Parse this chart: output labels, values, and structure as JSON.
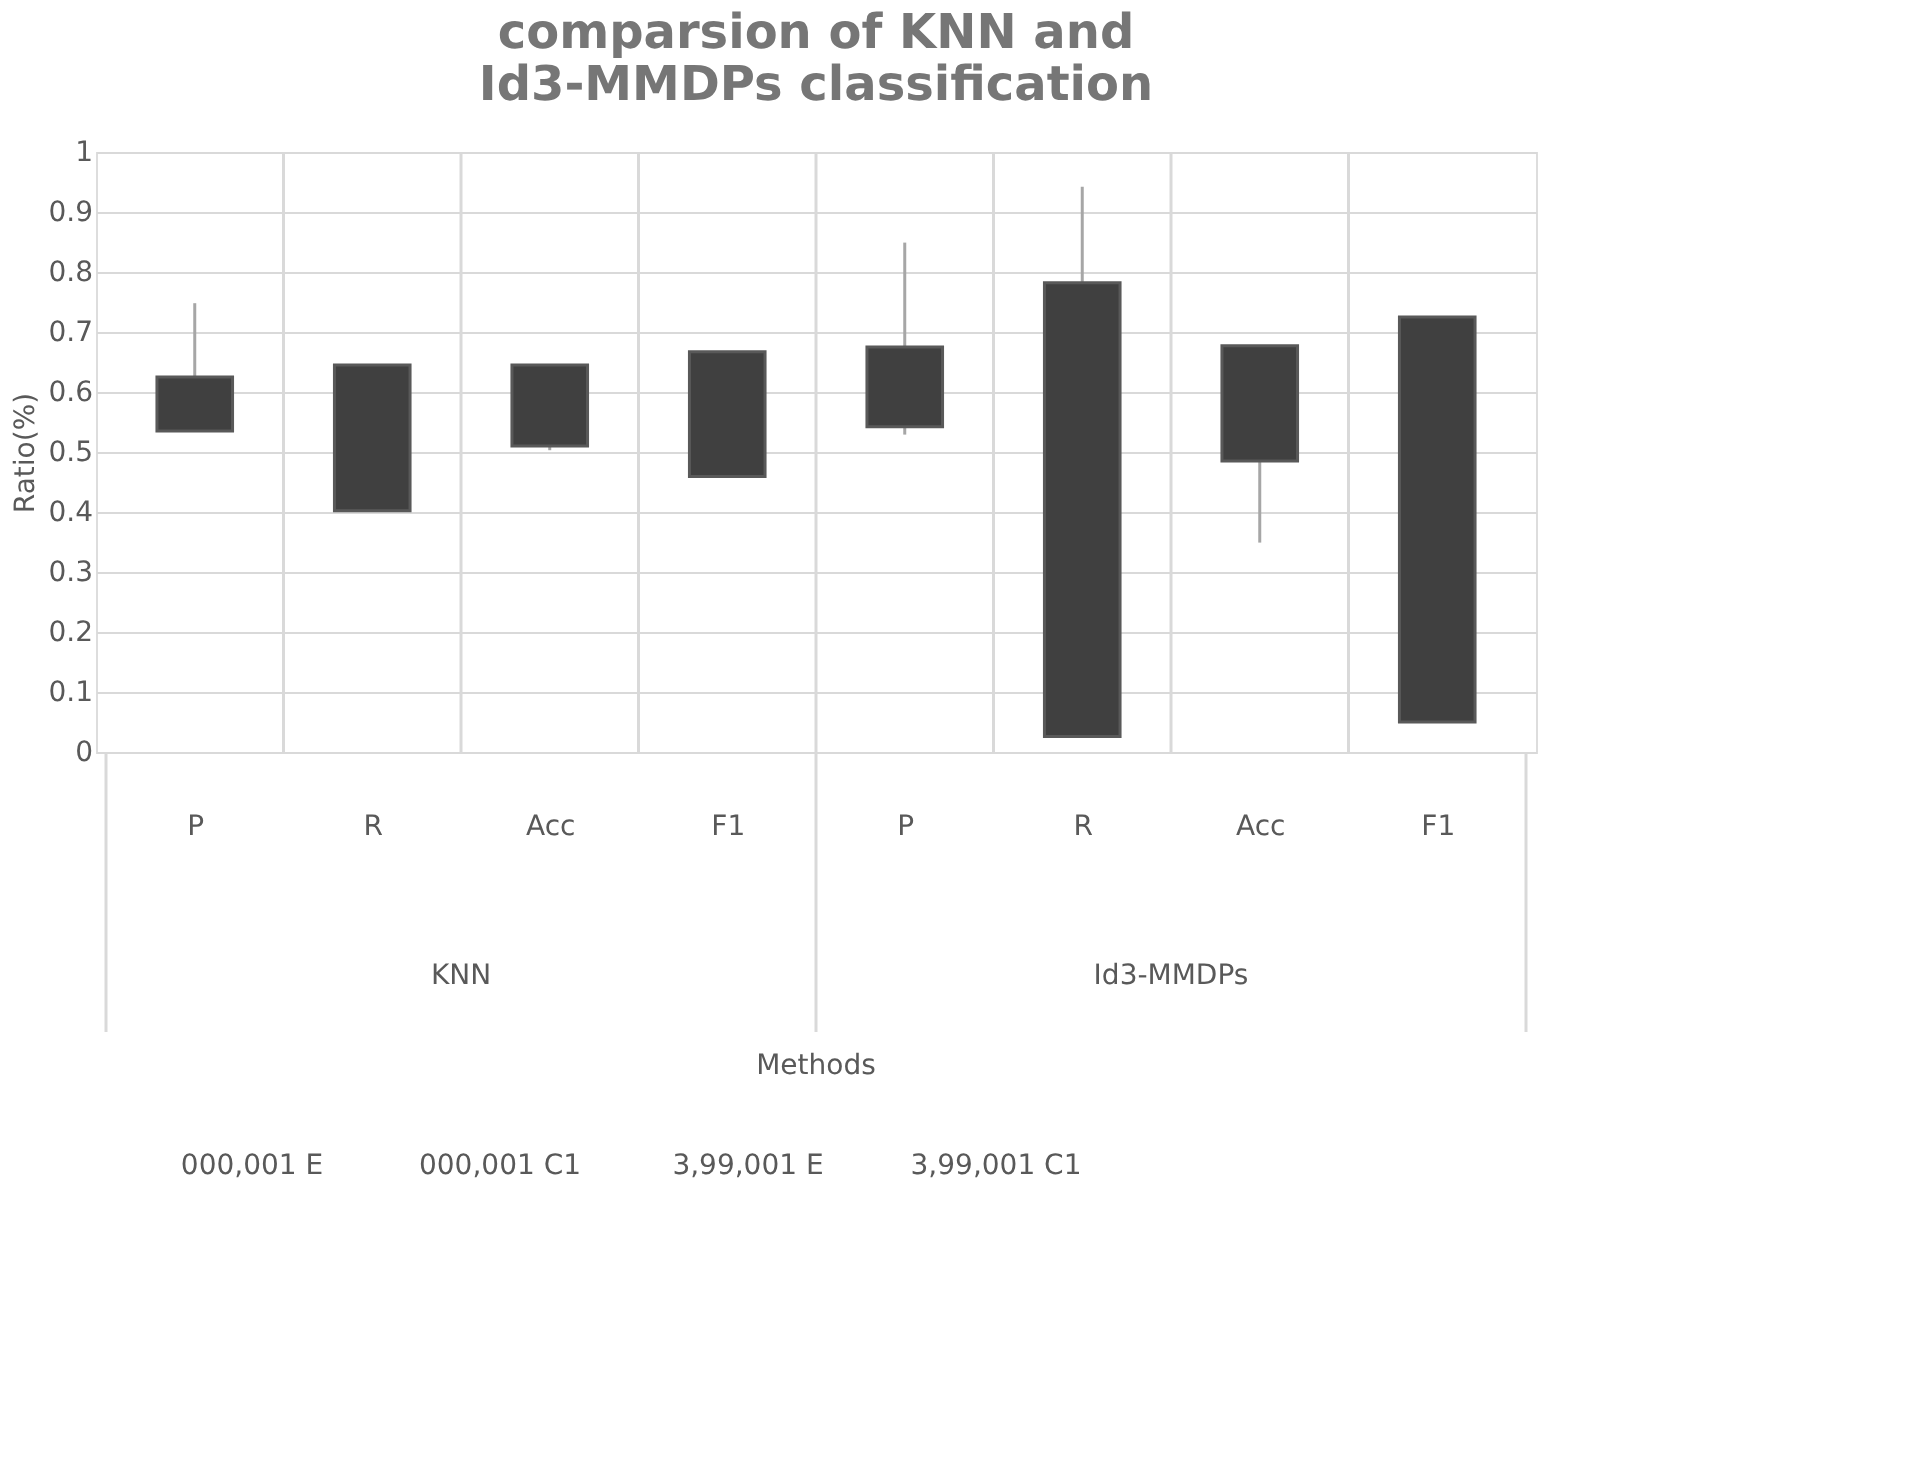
{
  "chart_data": {
    "type": "candlestick",
    "title": "comparsion of KNN and Id3-MMDPs classification",
    "ylabel": "Ratio(%)",
    "categories": [
      "P",
      "R",
      "Acc",
      "F1",
      "P",
      "R",
      "Acc",
      "F1"
    ],
    "ohlc": [
      [
        0.625,
        0.748,
        0.535,
        0.535
      ],
      [
        0.645,
        0.645,
        0.402,
        0.402
      ],
      [
        0.645,
        0.645,
        0.503,
        0.51
      ],
      [
        0.667,
        0.667,
        0.459,
        0.459
      ],
      [
        0.675,
        0.849,
        0.529,
        0.542
      ],
      [
        0.782,
        0.942,
        0.026,
        0.026
      ],
      [
        0.677,
        0.677,
        0.349,
        0.485
      ],
      [
        0.725,
        0.725,
        0.05,
        0.05
      ]
    ],
    "ylim": [
      0,
      1
    ],
    "yticks": [
      0,
      0.1,
      0.2,
      0.3,
      0.4,
      0.5,
      0.6,
      0.7,
      0.8,
      0.9,
      1
    ],
    "grid": true,
    "annotations": [
      "KNN",
      "Id3-MMDPs",
      "Methods",
      "000,001 E",
      "000,001 C1",
      "3,99,001 E",
      "3,99,001 C1"
    ]
  }
}
